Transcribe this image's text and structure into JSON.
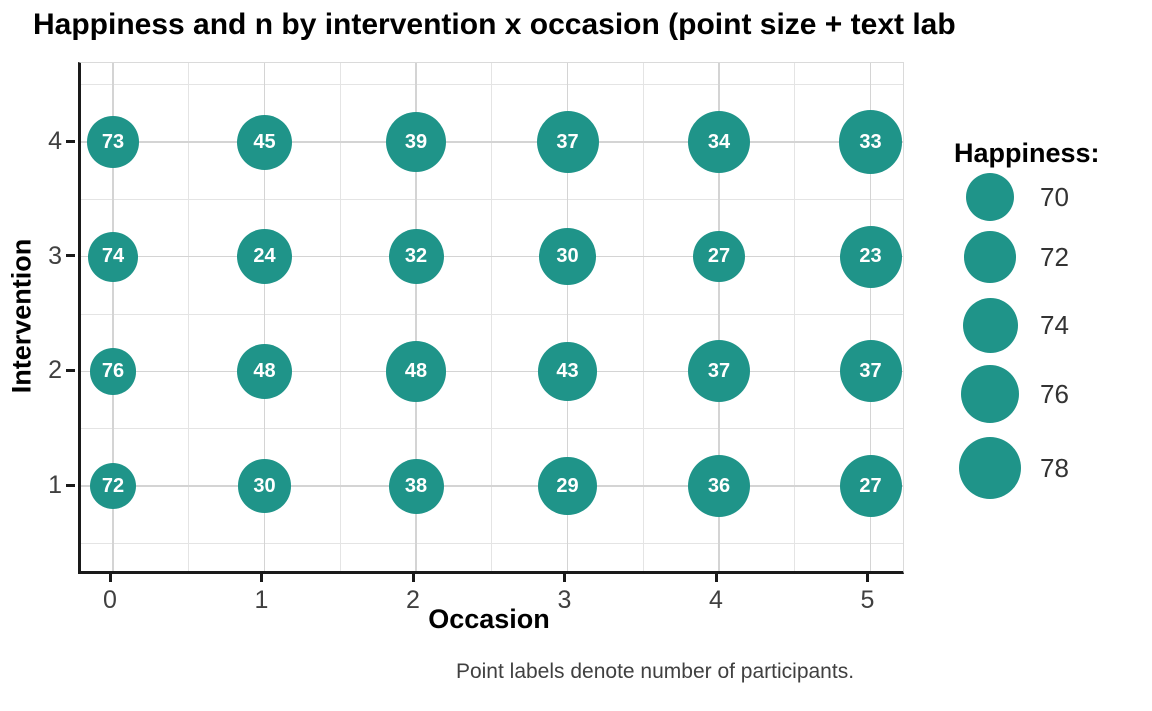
{
  "chart_data": {
    "type": "scatter",
    "subtype": "bubble",
    "title": "Happiness and n by intervention x occasion (point size + text lab",
    "xlabel": "Occasion",
    "ylabel": "Intervention",
    "caption": "Point labels denote number of participants.",
    "x_ticks": [
      0,
      1,
      2,
      3,
      4,
      5
    ],
    "y_ticks": [
      4,
      3,
      2,
      1
    ],
    "xlim": [
      -0.2,
      5.2
    ],
    "ylim": [
      0.3,
      4.7
    ],
    "grid": true,
    "occasions": [
      0,
      1,
      2,
      3,
      4,
      5
    ],
    "series": [
      {
        "intervention": 4,
        "n": [
          73,
          45,
          39,
          37,
          34,
          33
        ],
        "happiness_approx": [
          72,
          74,
          77,
          78,
          78,
          79
        ]
      },
      {
        "intervention": 3,
        "n": [
          74,
          24,
          32,
          30,
          27,
          23
        ],
        "happiness_approx": [
          71,
          74,
          74,
          75,
          72,
          78
        ]
      },
      {
        "intervention": 2,
        "n": [
          76,
          48,
          48,
          43,
          37,
          37
        ],
        "happiness_approx": [
          69,
          74,
          77,
          76,
          78,
          78
        ]
      },
      {
        "intervention": 1,
        "n": [
          72,
          30,
          38,
          29,
          36,
          27
        ],
        "happiness_approx": [
          69,
          73,
          74,
          76,
          78,
          78
        ]
      }
    ],
    "legend": {
      "title": "Happiness:",
      "position": "right",
      "values": [
        70,
        72,
        74,
        76,
        78
      ]
    },
    "colors": {
      "point_fill": "#1f9489",
      "point_label": "#ffffff",
      "axis_line": "#1a1a1a",
      "grid_major": "#d4d4d4",
      "grid_minor": "#e4e4e4",
      "tick_text": "#404040"
    }
  }
}
